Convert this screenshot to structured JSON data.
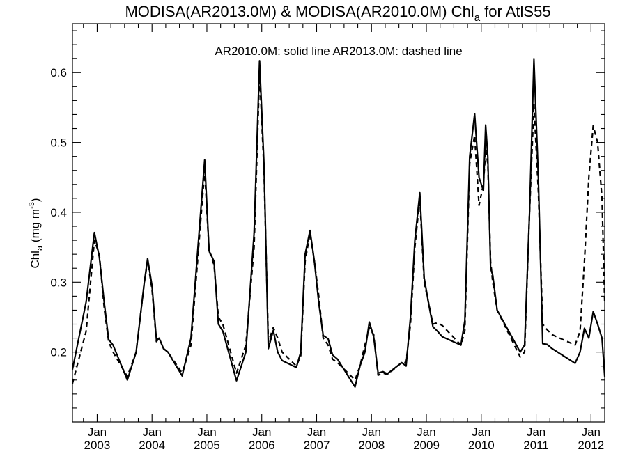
{
  "chart_data": {
    "type": "line",
    "title": "MODISA(AR2013.0M) & MODISA(AR2010.0M)  Chl",
    "title_subscript": "a",
    "title_suffix": " for AtlS55",
    "legend_text": "AR2010.0M: solid line   AR2013.0M: dashed line",
    "ylabel": "Chl",
    "ylabel_subscript": "a",
    "ylabel_units": " (mg m",
    "ylabel_units_sup": "-3",
    "ylabel_close": ")",
    "ylim": [
      0.1,
      0.67
    ],
    "xlim": [
      2002.55,
      2012.25
    ],
    "y_ticks": [
      {
        "value": 0.2,
        "label": "0.2"
      },
      {
        "value": 0.3,
        "label": "0.3"
      },
      {
        "value": 0.4,
        "label": "0.4"
      },
      {
        "value": 0.5,
        "label": "0.5"
      },
      {
        "value": 0.6,
        "label": "0.6"
      }
    ],
    "x_ticks": [
      {
        "value": 2003.0,
        "month": "Jan",
        "year": "2003"
      },
      {
        "value": 2004.0,
        "month": "Jan",
        "year": "2004"
      },
      {
        "value": 2005.0,
        "month": "Jan",
        "year": "2005"
      },
      {
        "value": 2006.0,
        "month": "Jan",
        "year": "2006"
      },
      {
        "value": 2007.0,
        "month": "Jan",
        "year": "2007"
      },
      {
        "value": 2008.0,
        "month": "Jan",
        "year": "2008"
      },
      {
        "value": 2009.0,
        "month": "Jan",
        "year": "2009"
      },
      {
        "value": 2010.0,
        "month": "Jan",
        "year": "2010"
      },
      {
        "value": 2011.0,
        "month": "Jan",
        "year": "2011"
      },
      {
        "value": 2012.0,
        "month": "Jan",
        "year": "2012"
      }
    ],
    "series": [
      {
        "style": "solid",
        "x": [
          2002.55,
          2002.8,
          2002.95,
          2003.04,
          2003.13,
          2003.21,
          2003.29,
          2003.55,
          2003.71,
          2003.86,
          2003.92,
          2004.0,
          2004.08,
          2004.13,
          2004.21,
          2004.29,
          2004.55,
          2004.71,
          2004.96,
          2005.04,
          2005.13,
          2005.21,
          2005.29,
          2005.54,
          2005.71,
          2005.86,
          2005.96,
          2006.04,
          2006.12,
          2006.21,
          2006.29,
          2006.37,
          2006.63,
          2006.71,
          2006.79,
          2006.88,
          2006.96,
          2007.04,
          2007.12,
          2007.21,
          2007.29,
          2007.38,
          2007.7,
          2007.79,
          2007.88,
          2007.96,
          2008.04,
          2008.12,
          2008.21,
          2008.29,
          2008.55,
          2008.63,
          2008.71,
          2008.79,
          2008.88,
          2008.96,
          2009.04,
          2009.12,
          2009.2,
          2009.29,
          2009.63,
          2009.7,
          2009.79,
          2009.88,
          2009.96,
          2010.04,
          2010.08,
          2010.12,
          2010.17,
          2010.21,
          2010.29,
          2010.71,
          2010.79,
          2010.88,
          2010.96,
          2011.04,
          2011.12,
          2011.2,
          2011.29,
          2011.71,
          2011.8,
          2011.88,
          2011.96,
          2012.04,
          2012.12,
          2012.2,
          2012.25
        ],
        "y": [
          0.175,
          0.272,
          0.371,
          0.336,
          0.27,
          0.218,
          0.21,
          0.16,
          0.2,
          0.3,
          0.334,
          0.295,
          0.218,
          0.22,
          0.205,
          0.2,
          0.166,
          0.22,
          0.475,
          0.345,
          0.33,
          0.24,
          0.23,
          0.159,
          0.2,
          0.37,
          0.617,
          0.47,
          0.205,
          0.231,
          0.2,
          0.188,
          0.178,
          0.2,
          0.34,
          0.374,
          0.33,
          0.27,
          0.224,
          0.219,
          0.196,
          0.19,
          0.15,
          0.18,
          0.2,
          0.243,
          0.222,
          0.17,
          0.172,
          0.169,
          0.185,
          0.18,
          0.25,
          0.36,
          0.428,
          0.306,
          0.27,
          0.236,
          0.23,
          0.222,
          0.21,
          0.245,
          0.48,
          0.541,
          0.45,
          0.431,
          0.525,
          0.48,
          0.32,
          0.31,
          0.26,
          0.2,
          0.21,
          0.4,
          0.619,
          0.45,
          0.212,
          0.211,
          0.205,
          0.184,
          0.2,
          0.234,
          0.22,
          0.258,
          0.24,
          0.22,
          0.165
        ]
      },
      {
        "style": "dashed",
        "x": [
          2002.55,
          2002.8,
          2002.95,
          2003.04,
          2003.13,
          2003.21,
          2003.29,
          2003.55,
          2003.71,
          2003.86,
          2003.92,
          2004.0,
          2004.08,
          2004.13,
          2004.21,
          2004.29,
          2004.55,
          2004.71,
          2004.96,
          2005.04,
          2005.13,
          2005.21,
          2005.29,
          2005.54,
          2005.71,
          2005.86,
          2005.96,
          2006.04,
          2006.12,
          2006.21,
          2006.29,
          2006.37,
          2006.63,
          2006.71,
          2006.79,
          2006.88,
          2006.96,
          2007.04,
          2007.12,
          2007.21,
          2007.29,
          2007.38,
          2007.7,
          2007.79,
          2007.88,
          2007.96,
          2008.04,
          2008.12,
          2008.21,
          2008.29,
          2008.55,
          2008.63,
          2008.71,
          2008.79,
          2008.88,
          2008.96,
          2009.04,
          2009.12,
          2009.2,
          2009.29,
          2009.63,
          2009.7,
          2009.79,
          2009.88,
          2009.96,
          2010.04,
          2010.08,
          2010.12,
          2010.17,
          2010.21,
          2010.29,
          2010.71,
          2010.79,
          2010.88,
          2010.96,
          2011.04,
          2011.12,
          2011.2,
          2011.29,
          2011.71,
          2011.8,
          2011.88,
          2011.96,
          2012.04,
          2012.12,
          2012.2,
          2012.25
        ],
        "y": [
          0.155,
          0.23,
          0.36,
          0.34,
          0.262,
          0.215,
          0.2,
          0.165,
          0.2,
          0.3,
          0.33,
          0.29,
          0.215,
          0.22,
          0.205,
          0.2,
          0.17,
          0.21,
          0.46,
          0.345,
          0.325,
          0.25,
          0.24,
          0.17,
          0.21,
          0.35,
          0.6,
          0.46,
          0.215,
          0.235,
          0.22,
          0.2,
          0.18,
          0.195,
          0.33,
          0.37,
          0.33,
          0.28,
          0.22,
          0.21,
          0.19,
          0.185,
          0.16,
          0.18,
          0.21,
          0.235,
          0.225,
          0.167,
          0.17,
          0.168,
          0.185,
          0.185,
          0.24,
          0.35,
          0.42,
          0.3,
          0.27,
          0.24,
          0.242,
          0.238,
          0.21,
          0.23,
          0.47,
          0.51,
          0.41,
          0.44,
          0.49,
          0.47,
          0.33,
          0.3,
          0.26,
          0.193,
          0.2,
          0.4,
          0.555,
          0.43,
          0.24,
          0.232,
          0.225,
          0.21,
          0.23,
          0.33,
          0.45,
          0.524,
          0.5,
          0.42,
          0.27
        ]
      }
    ]
  }
}
